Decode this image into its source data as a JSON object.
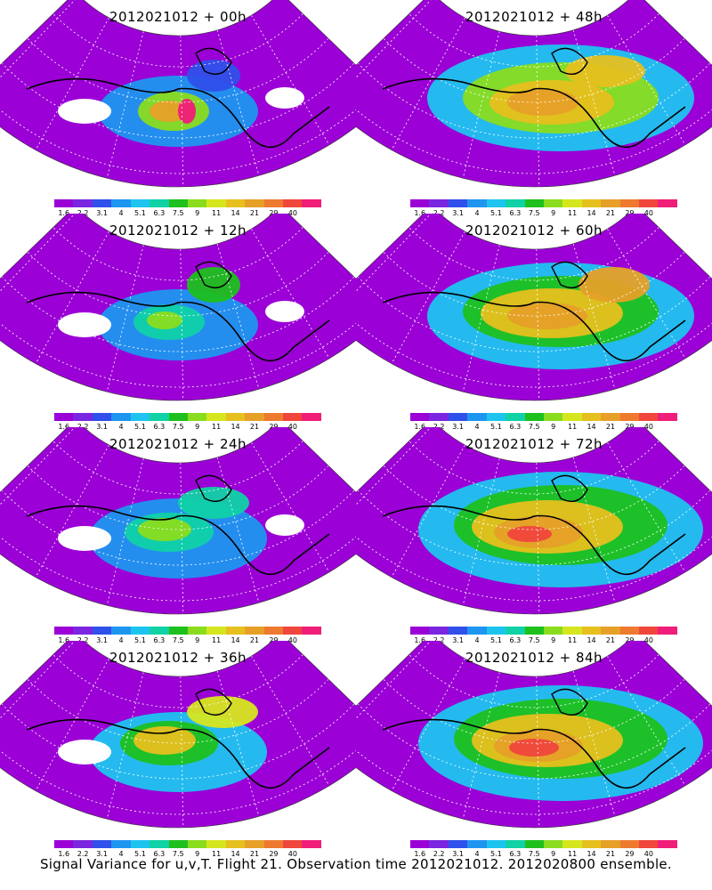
{
  "panels": [
    {
      "title": "2012021012 + 00h"
    },
    {
      "title": "2012021012 + 48h"
    },
    {
      "title": "2012021012 + 12h"
    },
    {
      "title": "2012021012 + 60h"
    },
    {
      "title": "2012021012 + 24h"
    },
    {
      "title": "2012021012 + 72h"
    },
    {
      "title": "2012021012 + 36h"
    },
    {
      "title": "2012021012 + 84h"
    }
  ],
  "colorbar": {
    "colors": [
      "#9b00d6",
      "#7a26e0",
      "#2f50ea",
      "#1e96f0",
      "#1ec4f0",
      "#10d2a6",
      "#1ec01e",
      "#8adc1e",
      "#d6e61e",
      "#e6c01e",
      "#e6a028",
      "#ee7a30",
      "#f0463c",
      "#f01e78"
    ],
    "ticks": [
      "1.6",
      "2.2",
      "3.1",
      "4",
      "5.1",
      "6.3",
      "7.5",
      "9",
      "11",
      "14",
      "21",
      "29",
      "40"
    ]
  },
  "footer": "Signal Variance for u,v,T. Flight 21. Observation time 2012021012. 2012020800 ensemble."
}
